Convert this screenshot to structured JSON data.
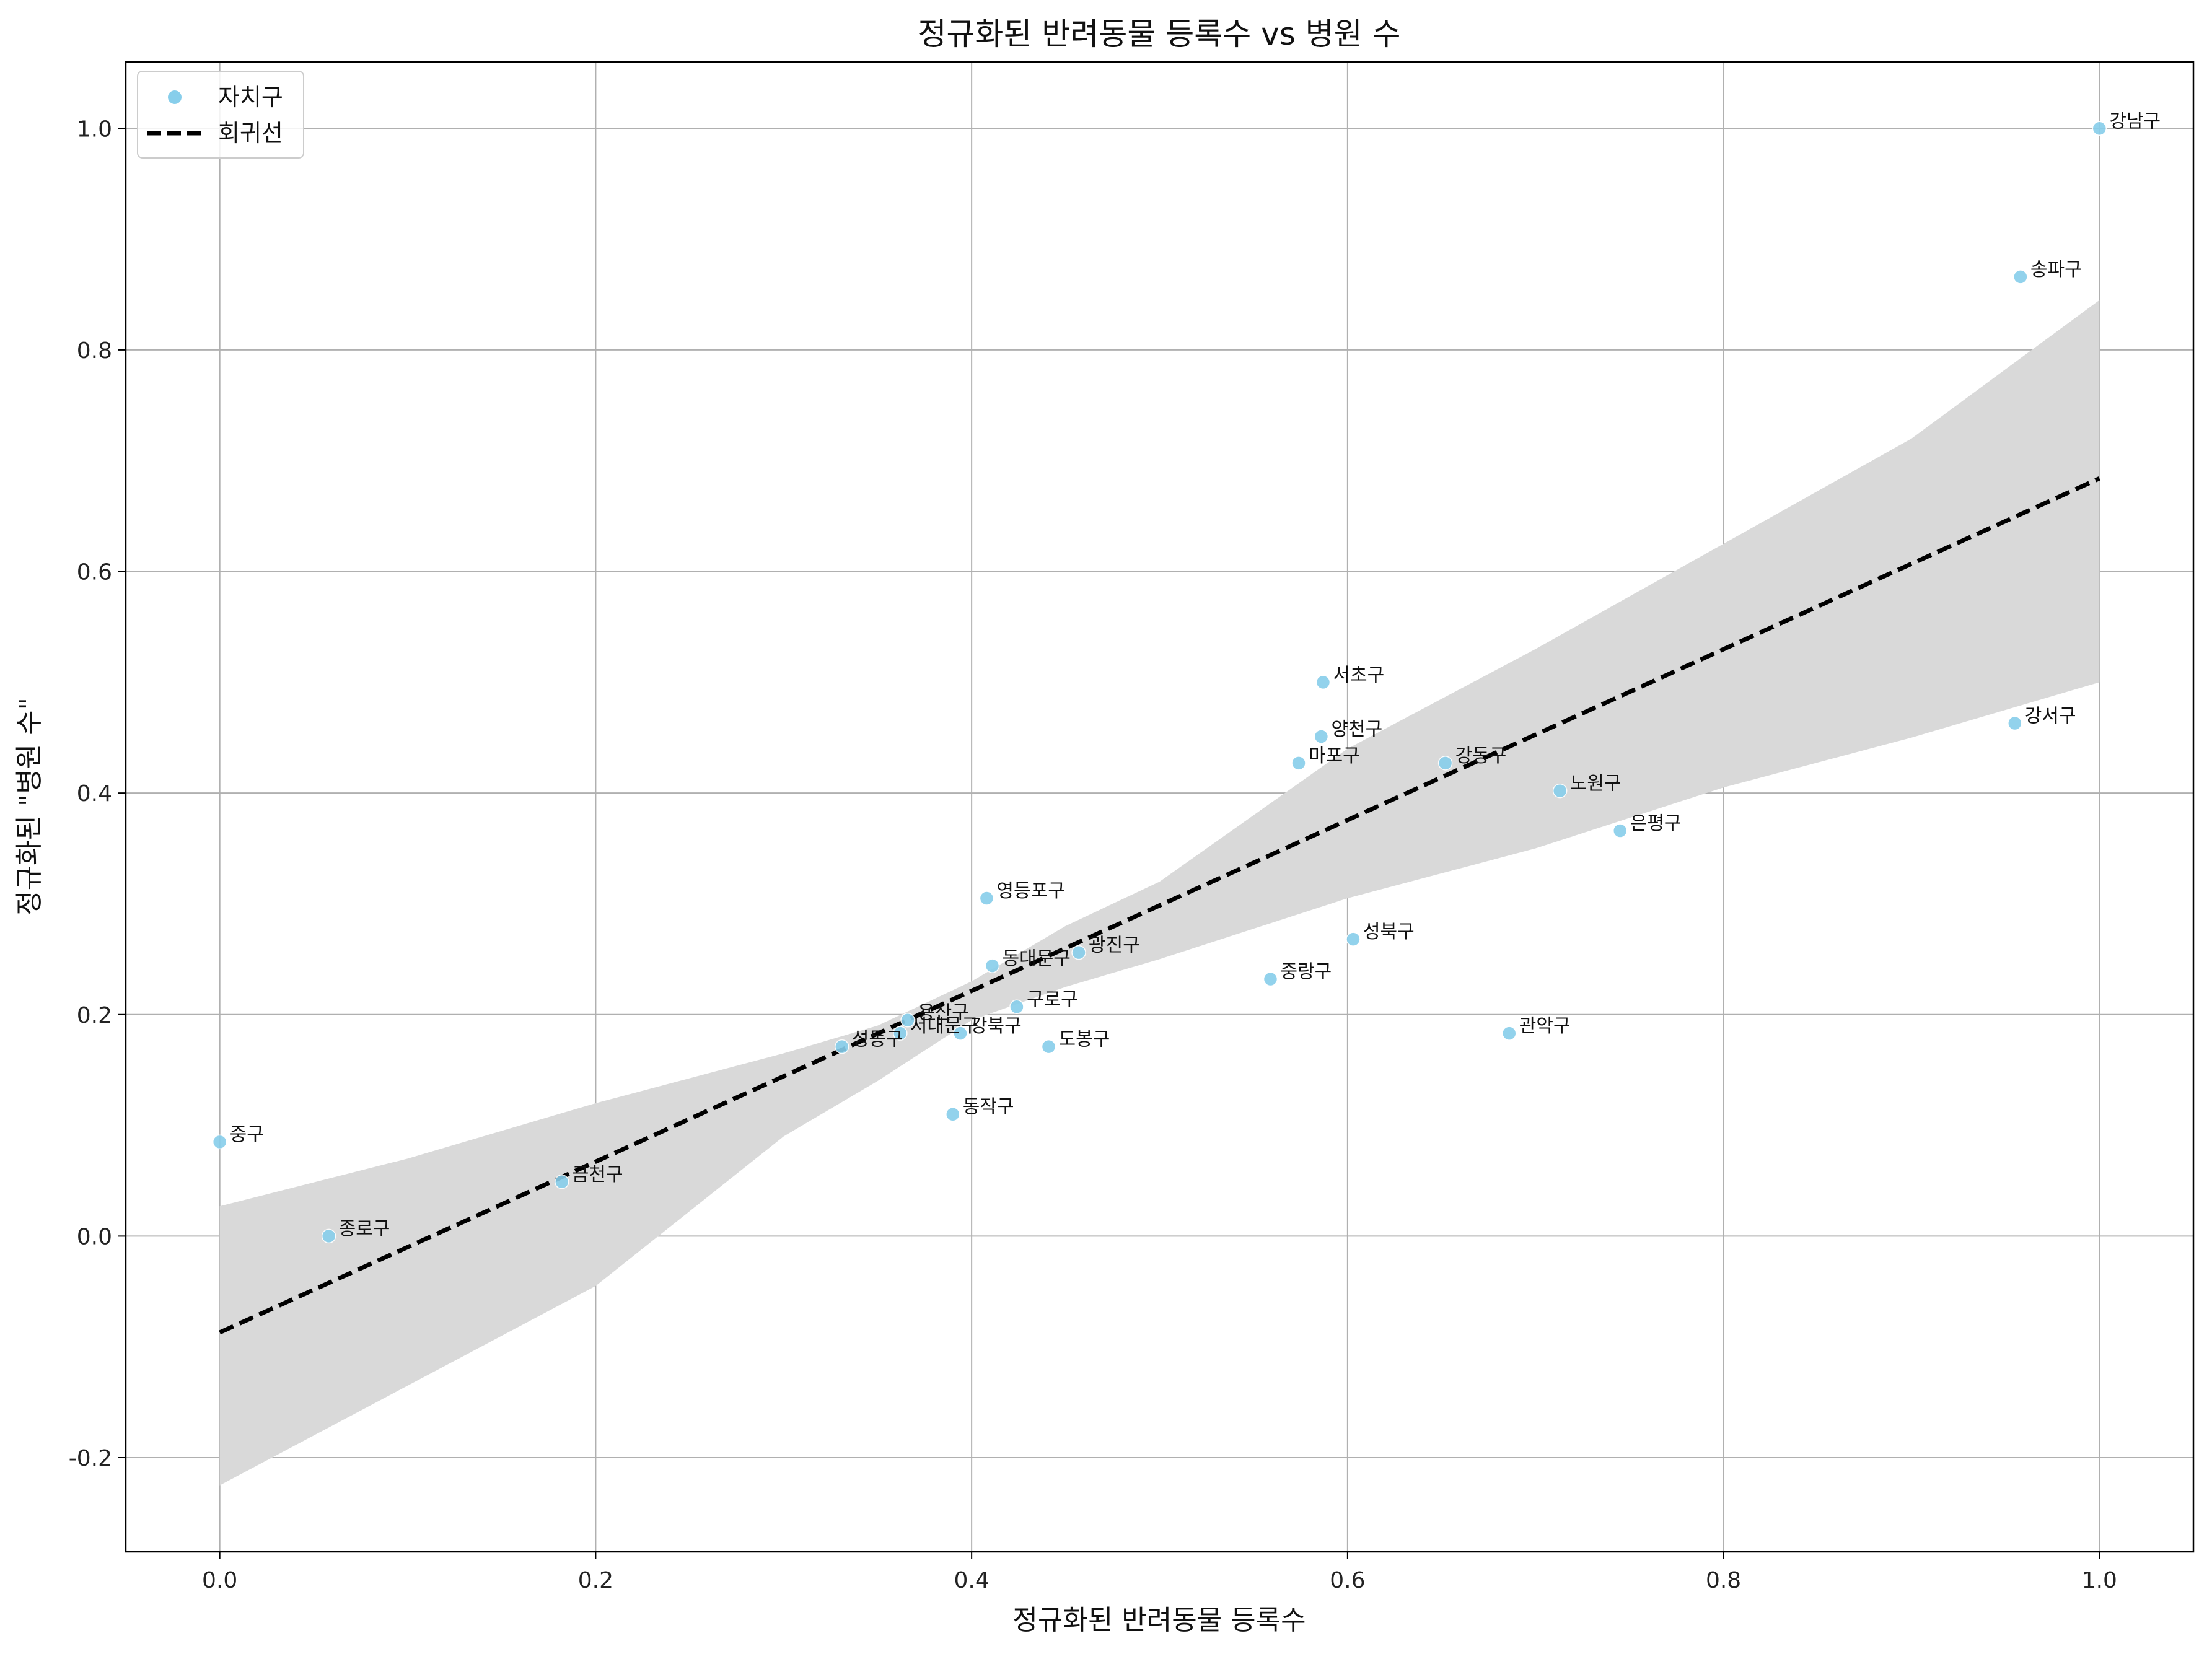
{
  "chart_data": {
    "type": "scatter",
    "title": "정규화된 반려동물 등록수 vs 병원 수",
    "xlabel": "정규화된 반려동물 등록수",
    "ylabel": "정규화된 \"병원 수\"",
    "xlim": [
      -0.05,
      1.05
    ],
    "ylim": [
      -0.285,
      1.06
    ],
    "xticks": [
      0.0,
      0.2,
      0.4,
      0.6,
      0.8,
      1.0
    ],
    "xtick_labels": [
      "0.0",
      "0.2",
      "0.4",
      "0.6",
      "0.8",
      "1.0"
    ],
    "yticks": [
      -0.2,
      0.0,
      0.2,
      0.4,
      0.6,
      0.8,
      1.0
    ],
    "ytick_labels": [
      "-0.2",
      "0.0",
      "0.2",
      "0.4",
      "0.6",
      "0.8",
      "1.0"
    ],
    "grid": true,
    "legend_position": "top-left",
    "colors": {
      "points": "#87CEEB",
      "regression": "#000000",
      "confidence_band": "#d9d9d9"
    },
    "series": [
      {
        "name": "자치구",
        "marker": "circle",
        "points": [
          {
            "label": "강남구",
            "x": 1.0,
            "y": 1.0
          },
          {
            "label": "송파구",
            "x": 0.958,
            "y": 0.866
          },
          {
            "label": "강서구",
            "x": 0.955,
            "y": 0.463
          },
          {
            "label": "서초구",
            "x": 0.587,
            "y": 0.5
          },
          {
            "label": "양천구",
            "x": 0.586,
            "y": 0.451
          },
          {
            "label": "마포구",
            "x": 0.574,
            "y": 0.427
          },
          {
            "label": "강동구",
            "x": 0.652,
            "y": 0.427
          },
          {
            "label": "노원구",
            "x": 0.713,
            "y": 0.402
          },
          {
            "label": "은평구",
            "x": 0.745,
            "y": 0.366
          },
          {
            "label": "영등포구",
            "x": 0.408,
            "y": 0.305
          },
          {
            "label": "성북구",
            "x": 0.603,
            "y": 0.268
          },
          {
            "label": "광진구",
            "x": 0.457,
            "y": 0.256
          },
          {
            "label": "동대문구",
            "x": 0.411,
            "y": 0.244
          },
          {
            "label": "중랑구",
            "x": 0.559,
            "y": 0.232
          },
          {
            "label": "구로구",
            "x": 0.424,
            "y": 0.207
          },
          {
            "label": "용산구",
            "x": 0.366,
            "y": 0.195
          },
          {
            "label": "서대문구",
            "x": 0.362,
            "y": 0.183
          },
          {
            "label": "강북구",
            "x": 0.394,
            "y": 0.183
          },
          {
            "label": "관악구",
            "x": 0.686,
            "y": 0.183
          },
          {
            "label": "성동구",
            "x": 0.331,
            "y": 0.171
          },
          {
            "label": "도봉구",
            "x": 0.441,
            "y": 0.171
          },
          {
            "label": "동작구",
            "x": 0.39,
            "y": 0.11
          },
          {
            "label": "중구",
            "x": 0.0,
            "y": 0.085
          },
          {
            "label": "금천구",
            "x": 0.182,
            "y": 0.049
          },
          {
            "label": "종로구",
            "x": 0.058,
            "y": 0.0
          }
        ]
      },
      {
        "name": "회귀선",
        "style": "dashed",
        "line": {
          "x": [
            0.0,
            1.0
          ],
          "y": [
            -0.087,
            0.684
          ]
        },
        "confidence_band": {
          "x": [
            0.0,
            0.1,
            0.2,
            0.3,
            0.35,
            0.4,
            0.45,
            0.5,
            0.6,
            0.7,
            0.8,
            0.9,
            1.0
          ],
          "lower": [
            -0.225,
            -0.135,
            -0.045,
            0.09,
            0.14,
            0.195,
            0.225,
            0.25,
            0.305,
            0.35,
            0.405,
            0.45,
            0.5
          ],
          "upper": [
            0.027,
            0.07,
            0.12,
            0.165,
            0.19,
            0.23,
            0.28,
            0.32,
            0.44,
            0.53,
            0.625,
            0.72,
            0.845
          ]
        }
      }
    ]
  }
}
